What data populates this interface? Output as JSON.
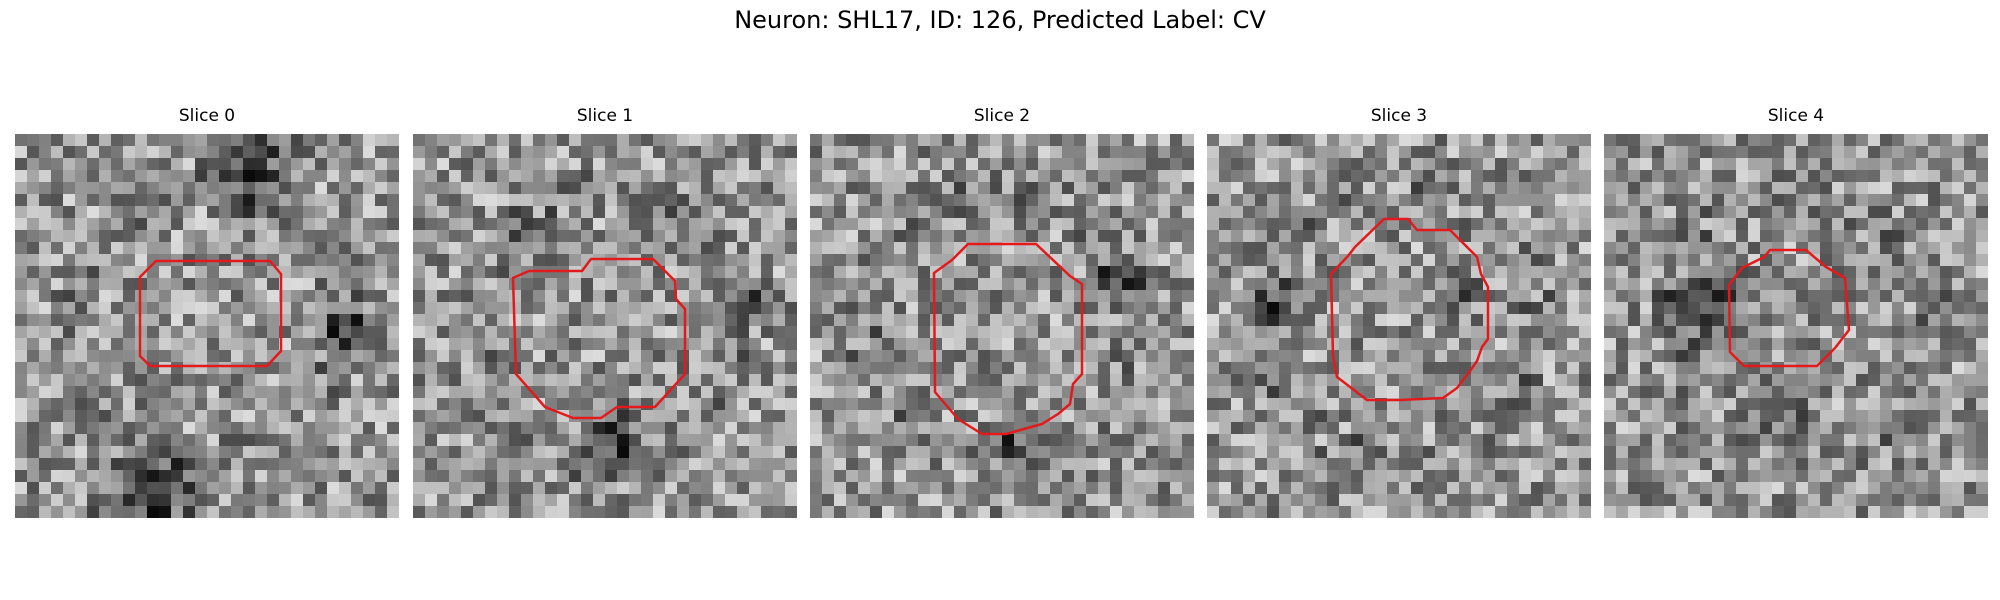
{
  "figure": {
    "title": "Neuron: SHL17, ID: 126, Predicted Label: CV",
    "contour_color": "#e31a1c"
  },
  "slices": [
    {
      "label": "Slice 0",
      "seed": 11,
      "dark_regions": [
        [
          0.62,
          0.08,
          0.16
        ],
        [
          0.85,
          0.5,
          0.09
        ],
        [
          0.35,
          0.95,
          0.2
        ]
      ],
      "contour_regularity": 0.9
    },
    {
      "label": "Slice 1",
      "seed": 23,
      "dark_regions": [
        [
          0.92,
          0.45,
          0.07
        ],
        [
          0.52,
          0.8,
          0.12
        ]
      ],
      "contour_regularity": 0.85
    },
    {
      "label": "Slice 2",
      "seed": 37,
      "dark_regions": [
        [
          0.52,
          0.8,
          0.08
        ],
        [
          0.8,
          0.4,
          0.1
        ]
      ],
      "contour_regularity": 0.8
    },
    {
      "label": "Slice 3",
      "seed": 41,
      "dark_regions": [
        [
          0.18,
          0.45,
          0.1
        ],
        [
          0.65,
          0.4,
          0.08
        ]
      ],
      "contour_regularity": 0.85
    },
    {
      "label": "Slice 4",
      "seed": 53,
      "dark_regions": [
        [
          0.28,
          0.45,
          0.16
        ],
        [
          0.45,
          0.7,
          0.12
        ]
      ],
      "contour_regularity": 0.9
    }
  ]
}
